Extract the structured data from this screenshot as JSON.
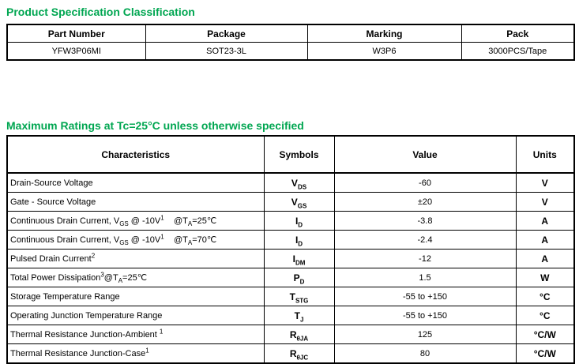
{
  "colors": {
    "heading_green": "#00A651",
    "table_border": "#000000",
    "text": "#000000",
    "background": "#ffffff"
  },
  "section1": {
    "title": "Product Specification Classification",
    "table": {
      "headers": [
        "Part Number",
        "Package",
        "Marking",
        "Pack"
      ],
      "rows": [
        [
          "YFW3P06MI",
          "SOT23-3L",
          "W3P6",
          "3000PCS/Tape"
        ]
      ]
    }
  },
  "section2": {
    "title": "Maximum Ratings at Tc=25°C unless otherwise specified",
    "table": {
      "headers": [
        "Characteristics",
        "Symbols",
        "Value",
        "Units"
      ],
      "rows": [
        {
          "characteristic": "Drain-Source Voltage",
          "symbol": [
            {
              "t": "V"
            },
            {
              "t": "DS",
              "s": "sub"
            }
          ],
          "value": "-60",
          "units": "V"
        },
        {
          "characteristic": "Gate - Source Voltage",
          "symbol": [
            {
              "t": "V"
            },
            {
              "t": "GS",
              "s": "sub"
            }
          ],
          "value": "±20",
          "units": "V"
        },
        {
          "characteristic": [
            {
              "t": "Continuous Drain Current, V"
            },
            {
              "t": "GS",
              "s": "sub"
            },
            {
              "t": " @ -10V"
            },
            {
              "t": "1",
              "s": "sup"
            },
            {
              "t": "    @T"
            },
            {
              "t": "A",
              "s": "sub"
            },
            {
              "t": "=25℃"
            }
          ],
          "symbol": [
            {
              "t": "I"
            },
            {
              "t": "D",
              "s": "sub"
            }
          ],
          "value": "-3.8",
          "units": "A"
        },
        {
          "characteristic": [
            {
              "t": "Continuous Drain Current, V"
            },
            {
              "t": "GS",
              "s": "sub"
            },
            {
              "t": " @ -10V"
            },
            {
              "t": "1",
              "s": "sup"
            },
            {
              "t": "    @T"
            },
            {
              "t": "A",
              "s": "sub"
            },
            {
              "t": "=70℃"
            }
          ],
          "symbol": [
            {
              "t": "I"
            },
            {
              "t": "D",
              "s": "sub"
            }
          ],
          "value": "-2.4",
          "units": "A"
        },
        {
          "characteristic": [
            {
              "t": "Pulsed Drain Current"
            },
            {
              "t": "2",
              "s": "sup"
            }
          ],
          "symbol": [
            {
              "t": "I"
            },
            {
              "t": "DM",
              "s": "sub"
            }
          ],
          "value": "-12",
          "units": "A"
        },
        {
          "characteristic": [
            {
              "t": "Total Power Dissipation"
            },
            {
              "t": "3",
              "s": "sup"
            },
            {
              "t": "@T"
            },
            {
              "t": "A",
              "s": "sub"
            },
            {
              "t": "=25℃"
            }
          ],
          "symbol": [
            {
              "t": "P"
            },
            {
              "t": "D",
              "s": "sub"
            }
          ],
          "value": "1.5",
          "units": "W"
        },
        {
          "characteristic": "Storage Temperature Range",
          "symbol": [
            {
              "t": "T"
            },
            {
              "t": "STG",
              "s": "sub"
            }
          ],
          "value": "-55 to +150",
          "units": "°C"
        },
        {
          "characteristic": "Operating Junction Temperature Range",
          "symbol": [
            {
              "t": "T"
            },
            {
              "t": "J",
              "s": "sub"
            }
          ],
          "value": "-55 to +150",
          "units": "°C"
        },
        {
          "characteristic": [
            {
              "t": "Thermal Resistance Junction-Ambient "
            },
            {
              "t": "1",
              "s": "sup"
            }
          ],
          "symbol": [
            {
              "t": "R"
            },
            {
              "t": "θJA",
              "s": "sub"
            }
          ],
          "value": "125",
          "units": "°C/W"
        },
        {
          "characteristic": [
            {
              "t": "Thermal Resistance Junction-Case"
            },
            {
              "t": "1",
              "s": "sup"
            }
          ],
          "symbol": [
            {
              "t": "R"
            },
            {
              "t": "θJC",
              "s": "sub"
            }
          ],
          "value": "80",
          "units": "°C/W"
        }
      ]
    }
  }
}
